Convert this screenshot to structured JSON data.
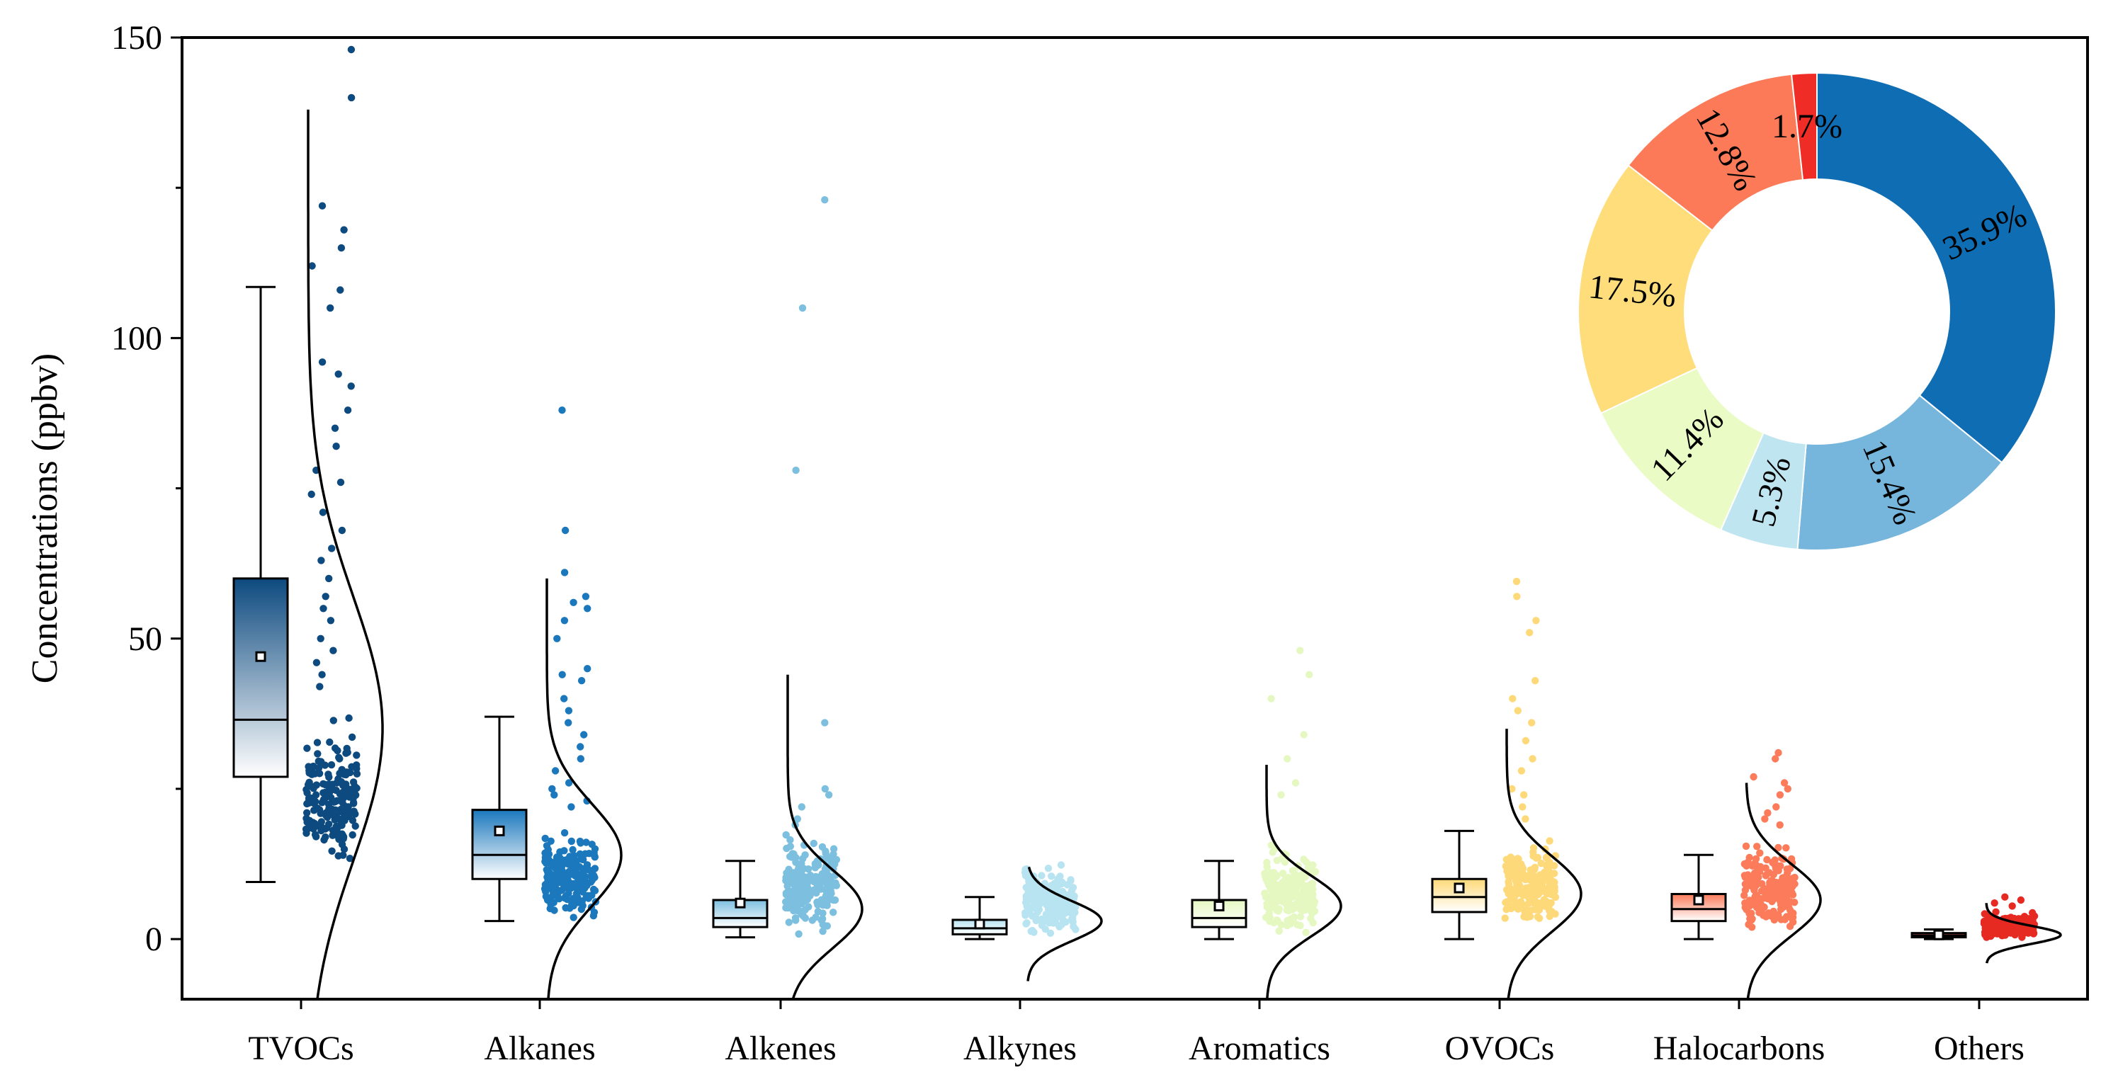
{
  "chart_data": [
    {
      "type": "box-scatter-density",
      "title": "",
      "xlabel": "",
      "ylabel": "Concentrations (ppbv)",
      "ylim": [
        -10,
        150
      ],
      "yticks": [
        0,
        50,
        100,
        150
      ],
      "categories": [
        "TVOCs",
        "Alkanes",
        "Alkenes",
        "Alkynes",
        "Aromatics",
        "OVOCs",
        "Halocarbons",
        "Others"
      ],
      "colors": [
        "#0d4a7f",
        "#1b78bd",
        "#7cbfdf",
        "#b8e4f1",
        "#e6f8c2",
        "#fdd979",
        "#fb7b5a",
        "#e62a22"
      ],
      "boxes": [
        {
          "category": "TVOCs",
          "whisker_low": 9.5,
          "q1": 27,
          "median": 36.5,
          "q3": 60,
          "whisker_high": 108.5,
          "mean": 47,
          "dens_peak": 35,
          "dens_sd": 22,
          "dens_lo": -10,
          "dens_hi": 138,
          "pts_lo": 10,
          "pts_hi": 40,
          "outliers": [
            148,
            140,
            122,
            118,
            115,
            112,
            108,
            105,
            96,
            94,
            92,
            88,
            85,
            82,
            78,
            76,
            74,
            71,
            68,
            65,
            63,
            60,
            57,
            55,
            53,
            50,
            48,
            46,
            44,
            42
          ]
        },
        {
          "category": "Alkanes",
          "whisker_low": 3,
          "q1": 10,
          "median": 14,
          "q3": 21.5,
          "whisker_high": 37,
          "mean": 18,
          "dens_peak": 14,
          "dens_sd": 8.5,
          "dens_lo": -10,
          "dens_hi": 60,
          "pts_lo": 3,
          "pts_hi": 20,
          "outliers": [
            88,
            68,
            61,
            57,
            56,
            55,
            53,
            50,
            45,
            44,
            43,
            40,
            38,
            36,
            34,
            32,
            30,
            28,
            26,
            25,
            24,
            23,
            22
          ]
        },
        {
          "category": "Alkenes",
          "whisker_low": 0.3,
          "q1": 2,
          "median": 3.5,
          "q3": 6.5,
          "whisker_high": 13,
          "mean": 6,
          "dens_peak": 5,
          "dens_sd": 6.5,
          "dens_lo": -10,
          "dens_hi": 44,
          "pts_lo": 0.5,
          "pts_hi": 20,
          "outliers": [
            123,
            105,
            78,
            36,
            25,
            24,
            22,
            20,
            19
          ]
        },
        {
          "category": "Alkynes",
          "whisker_low": 0,
          "q1": 0.8,
          "median": 1.8,
          "q3": 3.2,
          "whisker_high": 7,
          "mean": 2.5,
          "dens_peak": 3,
          "dens_sd": 3.3,
          "dens_lo": -7,
          "dens_hi": 12,
          "pts_lo": 0.3,
          "pts_hi": 15,
          "outliers": []
        },
        {
          "category": "Aromatics",
          "whisker_low": 0,
          "q1": 2,
          "median": 3.5,
          "q3": 6.5,
          "whisker_high": 13,
          "mean": 5.5,
          "dens_peak": 5.5,
          "dens_sd": 5,
          "dens_lo": -10,
          "dens_hi": 29,
          "pts_lo": 0.5,
          "pts_hi": 17,
          "outliers": [
            48,
            44,
            40,
            34,
            30,
            26,
            24
          ]
        },
        {
          "category": "OVOCs",
          "whisker_low": 0,
          "q1": 4.5,
          "median": 7,
          "q3": 10,
          "whisker_high": 18,
          "mean": 8.5,
          "dens_peak": 7.5,
          "dens_sd": 6.3,
          "dens_lo": -10,
          "dens_hi": 35,
          "pts_lo": 2,
          "pts_hi": 18,
          "outliers": [
            59.5,
            57,
            53,
            51,
            43,
            40,
            38,
            36,
            33,
            30,
            28,
            25,
            24,
            22,
            20
          ]
        },
        {
          "category": "Halocarbons",
          "whisker_low": 0,
          "q1": 3,
          "median": 5,
          "q3": 7.5,
          "whisker_high": 14,
          "mean": 6.5,
          "dens_peak": 6.5,
          "dens_sd": 6,
          "dens_lo": -10,
          "dens_hi": 26,
          "pts_lo": 1,
          "pts_hi": 18,
          "outliers": [
            31,
            30,
            27,
            26,
            25,
            24,
            22,
            21,
            20,
            19
          ]
        },
        {
          "category": "Others",
          "whisker_low": 0,
          "q1": 0.3,
          "median": 0.6,
          "q3": 1,
          "whisker_high": 1.6,
          "mean": 0.7,
          "dens_peak": 0.7,
          "dens_sd": 1.5,
          "dens_lo": -4,
          "dens_hi": 6,
          "pts_lo": 0,
          "pts_hi": 5,
          "outliers": [
            7,
            6.5,
            6,
            5.5
          ]
        }
      ]
    },
    {
      "type": "pie",
      "subtype": "donut",
      "title": "",
      "slices": [
        {
          "category": "Alkanes",
          "label": "35.9%",
          "value": 35.9,
          "color": "#0f6db3"
        },
        {
          "category": "Alkenes",
          "label": "15.4%",
          "value": 15.4,
          "color": "#76b6dc"
        },
        {
          "category": "Alkynes",
          "label": "5.3%",
          "value": 5.3,
          "color": "#bfe5f0"
        },
        {
          "category": "Aromatics",
          "label": "11.4%",
          "value": 11.4,
          "color": "#eafbc6"
        },
        {
          "category": "OVOCs",
          "label": "17.5%",
          "value": 17.5,
          "color": "#fedd7a"
        },
        {
          "category": "Halocarbons",
          "label": "12.8%",
          "value": 12.8,
          "color": "#fc7a57"
        },
        {
          "category": "Others",
          "label": "1.7%",
          "value": 1.7,
          "color": "#ef2c25"
        }
      ]
    }
  ]
}
